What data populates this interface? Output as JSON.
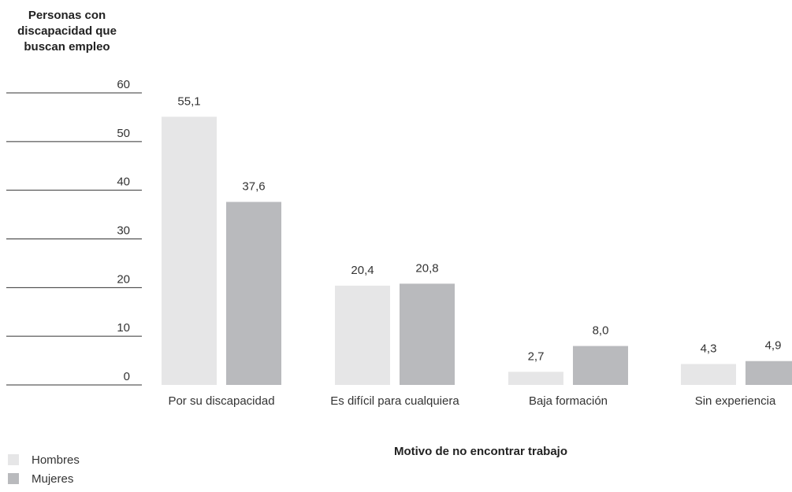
{
  "chart_data": {
    "type": "bar",
    "ylabel": "Personas con discapacidad que buscan empleo",
    "xlabel": "Motivo de no encontrar trabajo",
    "ylim": [
      0,
      60
    ],
    "yticks": [
      "0",
      "10",
      "20",
      "30",
      "40",
      "50",
      "60"
    ],
    "categories": [
      "Por su discapacidad",
      "Es difícil para cualquiera",
      "Baja formación",
      "Sin experiencia"
    ],
    "series": [
      {
        "name": "Hombres",
        "color": "#e6e6e7",
        "values": [
          55.1,
          20.4,
          2.7,
          4.3
        ],
        "labels": [
          "55,1",
          "20,4",
          "2,7",
          "4,3"
        ]
      },
      {
        "name": "Mujeres",
        "color": "#b9babd",
        "values": [
          37.6,
          20.8,
          8.0,
          4.9
        ],
        "labels": [
          "37,6",
          "20,8",
          "8,0",
          "4,9"
        ]
      }
    ],
    "legend_position": "bottom-left",
    "grid": false
  }
}
